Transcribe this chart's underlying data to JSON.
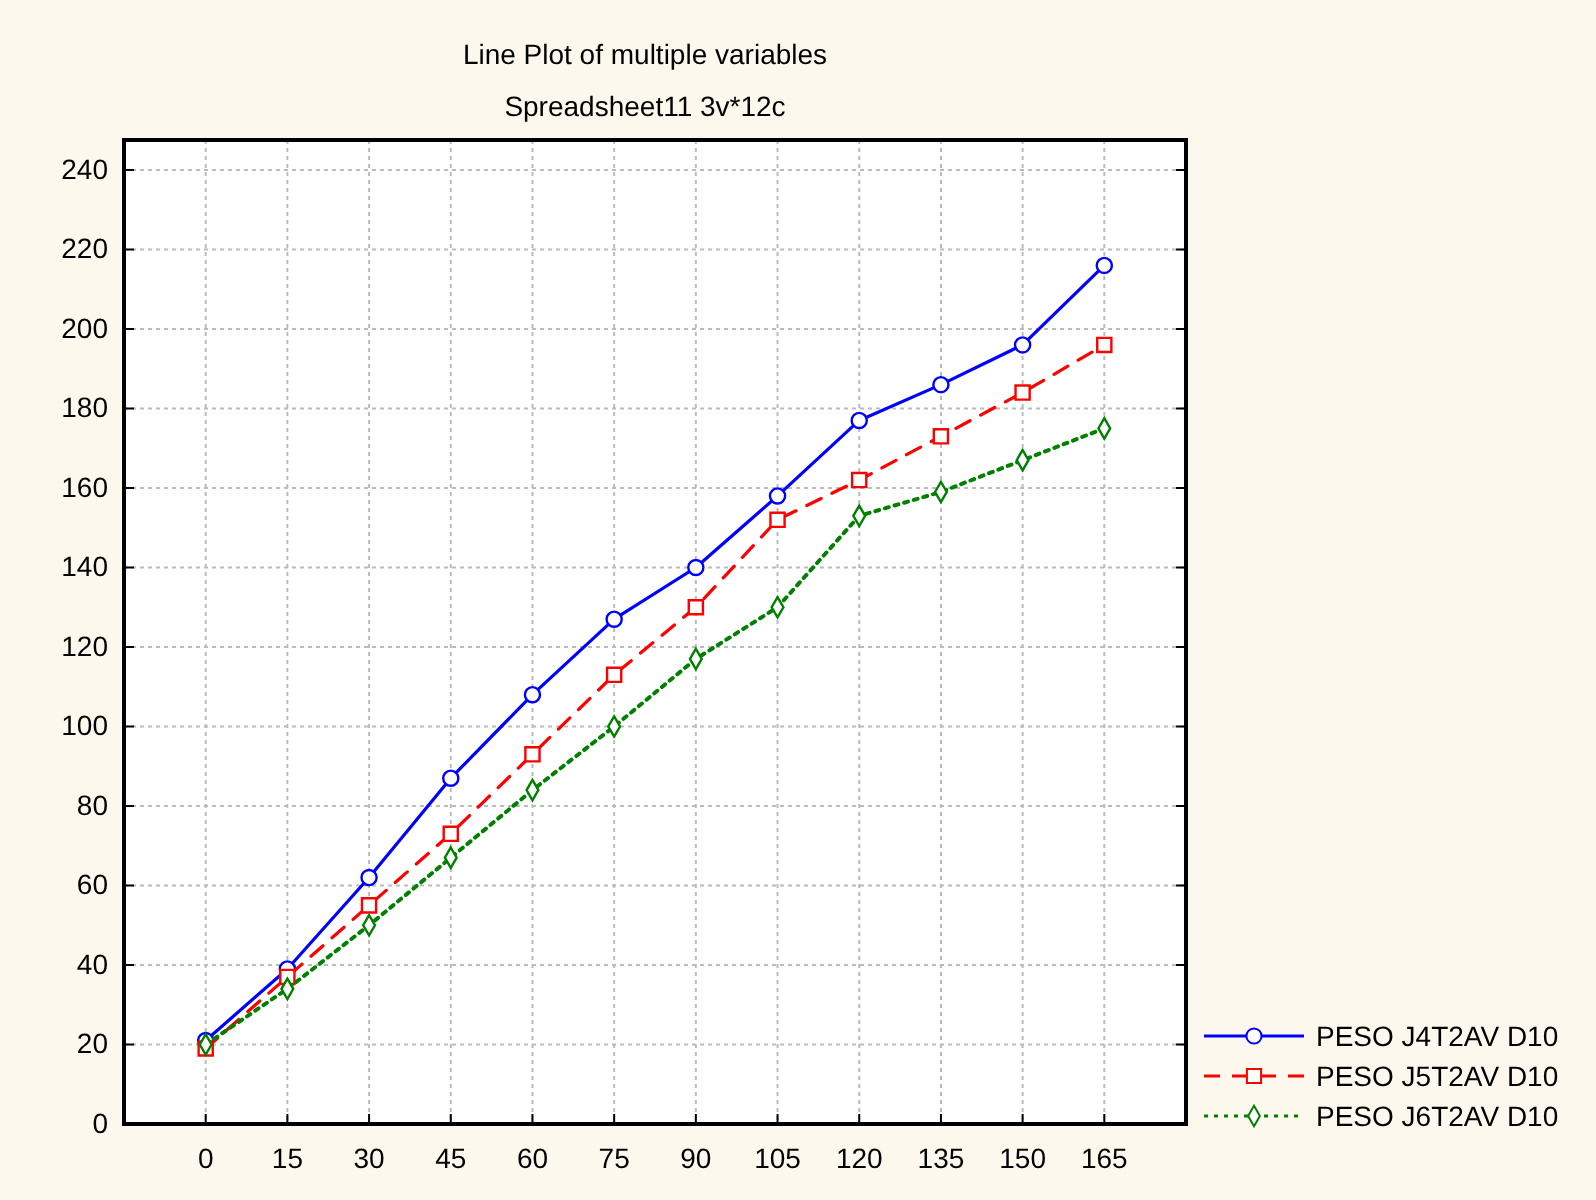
{
  "chart_data": {
    "type": "line",
    "title": "Line Plot of multiple variables",
    "subtitle": "Spreadsheet11 3v*12c",
    "x": [
      0,
      15,
      30,
      45,
      60,
      75,
      90,
      105,
      120,
      135,
      150,
      165
    ],
    "xlim": [
      -15,
      180
    ],
    "xticks": [
      0,
      15,
      30,
      45,
      60,
      75,
      90,
      105,
      120,
      135,
      150,
      165
    ],
    "ylim": [
      0,
      240
    ],
    "yticks": [
      0,
      20,
      40,
      60,
      80,
      100,
      120,
      140,
      160,
      180,
      200,
      220,
      240
    ],
    "grid": true,
    "legend": "bottom right",
    "series": [
      {
        "name": "PESO J4T2AV D10",
        "color": "#0000ff",
        "marker": "circle",
        "line_style": "solid",
        "values": [
          21,
          39,
          62,
          87,
          108,
          127,
          140,
          158,
          177,
          186,
          196,
          216
        ]
      },
      {
        "name": "PESO J5T2AV D10",
        "color": "#ff0000",
        "marker": "square",
        "line_style": "dashed",
        "values": [
          19,
          37,
          55,
          73,
          93,
          113,
          130,
          152,
          162,
          173,
          184,
          196
        ]
      },
      {
        "name": "PESO J6T2AV D10",
        "color": "#008000",
        "marker": "diamond",
        "line_style": "dotted",
        "values": [
          20,
          34,
          50,
          67,
          84,
          100,
          117,
          130,
          153,
          159,
          167,
          175
        ]
      }
    ]
  }
}
